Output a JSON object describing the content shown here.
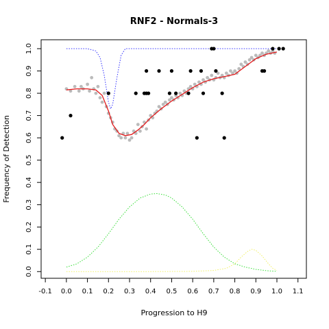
{
  "chart_data": {
    "type": "scatter",
    "title": "RNF2 - Normals-3",
    "xlabel": "Progression to H9",
    "ylabel": "Frequency of Detection",
    "xlim": [
      -0.12,
      1.14
    ],
    "ylim": [
      -0.03,
      1.04
    ],
    "x_ticks": [
      "-0.1",
      "0.0",
      "0.1",
      "0.2",
      "0.3",
      "0.4",
      "0.5",
      "0.6",
      "0.7",
      "0.8",
      "0.9",
      "1.0",
      "1.1"
    ],
    "y_ticks": [
      "0.0",
      "0.1",
      "0.2",
      "0.3",
      "0.4",
      "0.5",
      "0.6",
      "0.7",
      "0.8",
      "0.9",
      "1.0"
    ],
    "grid": false,
    "series": [
      {
        "kind": "points-black",
        "color": "#000000",
        "points": [
          [
            -0.02,
            0.6
          ],
          [
            0.02,
            0.7
          ],
          [
            0.2,
            0.8
          ],
          [
            0.33,
            0.8
          ],
          [
            0.37,
            0.8
          ],
          [
            0.38,
            0.9
          ],
          [
            0.38,
            0.8
          ],
          [
            0.39,
            0.8
          ],
          [
            0.44,
            0.9
          ],
          [
            0.49,
            0.8
          ],
          [
            0.5,
            0.9
          ],
          [
            0.52,
            0.8
          ],
          [
            0.58,
            0.8
          ],
          [
            0.59,
            0.9
          ],
          [
            0.62,
            0.6
          ],
          [
            0.64,
            0.9
          ],
          [
            0.65,
            0.8
          ],
          [
            0.69,
            1.0
          ],
          [
            0.7,
            1.0
          ],
          [
            0.71,
            0.9
          ],
          [
            0.74,
            0.8
          ],
          [
            0.75,
            0.6
          ],
          [
            0.93,
            0.9
          ],
          [
            0.94,
            0.9
          ],
          [
            0.98,
            1.0
          ],
          [
            1.01,
            1.0
          ],
          [
            1.03,
            1.0
          ]
        ]
      },
      {
        "kind": "points-gray",
        "color": "#bbbbbb",
        "points": [
          [
            0.0,
            0.82
          ],
          [
            0.02,
            0.81
          ],
          [
            0.04,
            0.83
          ],
          [
            0.06,
            0.81
          ],
          [
            0.07,
            0.83
          ],
          [
            0.08,
            0.82
          ],
          [
            0.1,
            0.84
          ],
          [
            0.11,
            0.81
          ],
          [
            0.12,
            0.87
          ],
          [
            0.13,
            0.82
          ],
          [
            0.14,
            0.8
          ],
          [
            0.15,
            0.83
          ],
          [
            0.16,
            0.78
          ],
          [
            0.17,
            0.76
          ],
          [
            0.18,
            0.8
          ],
          [
            0.19,
            0.74
          ],
          [
            0.2,
            0.71
          ],
          [
            0.21,
            0.69
          ],
          [
            0.22,
            0.67
          ],
          [
            0.23,
            0.64
          ],
          [
            0.24,
            0.63
          ],
          [
            0.25,
            0.61
          ],
          [
            0.26,
            0.6
          ],
          [
            0.27,
            0.62
          ],
          [
            0.28,
            0.6
          ],
          [
            0.29,
            0.62
          ],
          [
            0.3,
            0.59
          ],
          [
            0.31,
            0.6
          ],
          [
            0.32,
            0.63
          ],
          [
            0.33,
            0.62
          ],
          [
            0.34,
            0.66
          ],
          [
            0.35,
            0.63
          ],
          [
            0.36,
            0.65
          ],
          [
            0.37,
            0.67
          ],
          [
            0.38,
            0.64
          ],
          [
            0.39,
            0.68
          ],
          [
            0.4,
            0.7
          ],
          [
            0.41,
            0.69
          ],
          [
            0.42,
            0.71
          ],
          [
            0.43,
            0.72
          ],
          [
            0.44,
            0.74
          ],
          [
            0.45,
            0.73
          ],
          [
            0.46,
            0.75
          ],
          [
            0.47,
            0.76
          ],
          [
            0.48,
            0.75
          ],
          [
            0.49,
            0.77
          ],
          [
            0.5,
            0.78
          ],
          [
            0.51,
            0.77
          ],
          [
            0.52,
            0.79
          ],
          [
            0.53,
            0.78
          ],
          [
            0.54,
            0.8
          ],
          [
            0.55,
            0.79
          ],
          [
            0.56,
            0.81
          ],
          [
            0.57,
            0.8
          ],
          [
            0.58,
            0.82
          ],
          [
            0.59,
            0.83
          ],
          [
            0.6,
            0.82
          ],
          [
            0.61,
            0.84
          ],
          [
            0.62,
            0.83
          ],
          [
            0.63,
            0.85
          ],
          [
            0.64,
            0.84
          ],
          [
            0.65,
            0.86
          ],
          [
            0.66,
            0.85
          ],
          [
            0.67,
            0.87
          ],
          [
            0.68,
            0.86
          ],
          [
            0.69,
            0.88
          ],
          [
            0.7,
            0.86
          ],
          [
            0.71,
            0.87
          ],
          [
            0.72,
            0.89
          ],
          [
            0.73,
            0.87
          ],
          [
            0.74,
            0.88
          ],
          [
            0.75,
            0.87
          ],
          [
            0.76,
            0.89
          ],
          [
            0.77,
            0.88
          ],
          [
            0.78,
            0.9
          ],
          [
            0.79,
            0.89
          ],
          [
            0.8,
            0.9
          ],
          [
            0.81,
            0.89
          ],
          [
            0.82,
            0.91
          ],
          [
            0.83,
            0.93
          ],
          [
            0.84,
            0.92
          ],
          [
            0.85,
            0.94
          ],
          [
            0.86,
            0.93
          ],
          [
            0.87,
            0.95
          ],
          [
            0.88,
            0.96
          ],
          [
            0.89,
            0.95
          ],
          [
            0.9,
            0.97
          ],
          [
            0.91,
            0.96
          ],
          [
            0.92,
            0.97
          ],
          [
            0.93,
            0.98
          ],
          [
            0.94,
            0.97
          ],
          [
            0.95,
            0.98
          ],
          [
            0.96,
            0.99
          ],
          [
            0.97,
            0.98
          ],
          [
            0.98,
            0.99
          ],
          [
            0.99,
            0.98
          ]
        ]
      },
      {
        "kind": "line-red",
        "color": "#e31a1c",
        "points": [
          [
            0.0,
            0.815
          ],
          [
            0.05,
            0.82
          ],
          [
            0.1,
            0.82
          ],
          [
            0.14,
            0.815
          ],
          [
            0.17,
            0.79
          ],
          [
            0.2,
            0.72
          ],
          [
            0.22,
            0.66
          ],
          [
            0.25,
            0.62
          ],
          [
            0.28,
            0.61
          ],
          [
            0.31,
            0.615
          ],
          [
            0.34,
            0.635
          ],
          [
            0.37,
            0.66
          ],
          [
            0.4,
            0.69
          ],
          [
            0.45,
            0.73
          ],
          [
            0.5,
            0.765
          ],
          [
            0.55,
            0.795
          ],
          [
            0.6,
            0.825
          ],
          [
            0.65,
            0.85
          ],
          [
            0.7,
            0.865
          ],
          [
            0.75,
            0.875
          ],
          [
            0.8,
            0.885
          ],
          [
            0.85,
            0.92
          ],
          [
            0.9,
            0.955
          ],
          [
            0.95,
            0.975
          ],
          [
            1.0,
            0.985
          ]
        ]
      },
      {
        "kind": "line-blue-dotted",
        "color": "#3030ff",
        "points": [
          [
            0.0,
            1.0
          ],
          [
            0.1,
            1.0
          ],
          [
            0.14,
            0.99
          ],
          [
            0.16,
            0.96
          ],
          [
            0.18,
            0.88
          ],
          [
            0.2,
            0.76
          ],
          [
            0.21,
            0.73
          ],
          [
            0.22,
            0.75
          ],
          [
            0.24,
            0.87
          ],
          [
            0.26,
            0.97
          ],
          [
            0.28,
            1.0
          ],
          [
            0.35,
            1.0
          ],
          [
            0.6,
            1.0
          ],
          [
            1.0,
            1.0
          ]
        ]
      },
      {
        "kind": "line-green-dotted",
        "color": "#33dd33",
        "points": [
          [
            0.0,
            0.02
          ],
          [
            0.05,
            0.035
          ],
          [
            0.1,
            0.065
          ],
          [
            0.15,
            0.11
          ],
          [
            0.2,
            0.17
          ],
          [
            0.25,
            0.235
          ],
          [
            0.3,
            0.29
          ],
          [
            0.35,
            0.33
          ],
          [
            0.4,
            0.348
          ],
          [
            0.43,
            0.35
          ],
          [
            0.47,
            0.344
          ],
          [
            0.5,
            0.33
          ],
          [
            0.55,
            0.29
          ],
          [
            0.6,
            0.235
          ],
          [
            0.65,
            0.17
          ],
          [
            0.7,
            0.11
          ],
          [
            0.75,
            0.065
          ],
          [
            0.8,
            0.035
          ],
          [
            0.85,
            0.02
          ],
          [
            0.9,
            0.01
          ],
          [
            0.95,
            0.004
          ],
          [
            1.0,
            0.001
          ]
        ]
      },
      {
        "kind": "line-yellow-dotted",
        "color": "#f0f060",
        "points": [
          [
            0.0,
            0.0
          ],
          [
            0.4,
            0.0
          ],
          [
            0.6,
            0.001
          ],
          [
            0.7,
            0.005
          ],
          [
            0.76,
            0.015
          ],
          [
            0.8,
            0.035
          ],
          [
            0.83,
            0.065
          ],
          [
            0.86,
            0.09
          ],
          [
            0.88,
            0.1
          ],
          [
            0.9,
            0.095
          ],
          [
            0.93,
            0.07
          ],
          [
            0.96,
            0.035
          ],
          [
            0.98,
            0.015
          ],
          [
            1.0,
            0.005
          ]
        ]
      }
    ]
  }
}
